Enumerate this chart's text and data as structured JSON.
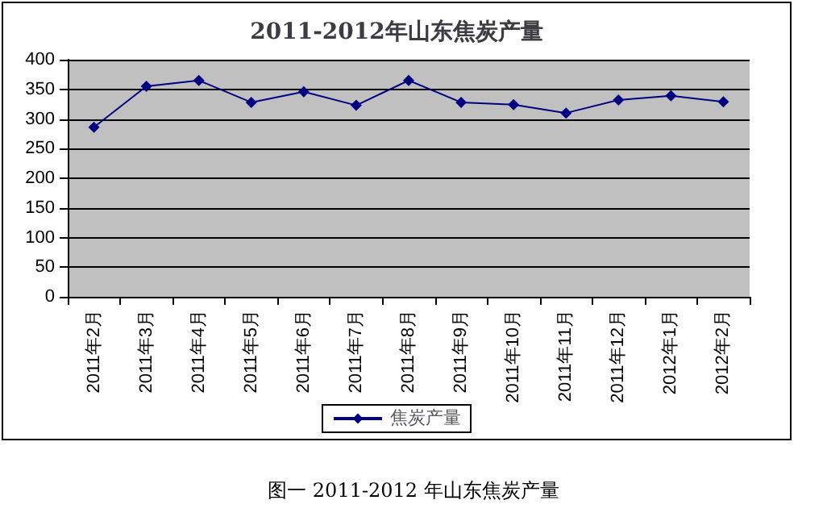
{
  "chart_data": {
    "type": "line",
    "title": "2011-2012年山东焦炭产量",
    "categories": [
      "2011年2月",
      "2011年3月",
      "2011年4月",
      "2011年5月",
      "2011年6月",
      "2011年7月",
      "2011年8月",
      "2011年9月",
      "2011年10月",
      "2011年11月",
      "2011年12月",
      "2012年1月",
      "2012年2月"
    ],
    "series": [
      {
        "name": "焦炭产量",
        "color": "#000080",
        "values": [
          286,
          355,
          365,
          328,
          346,
          323,
          365,
          328,
          324,
          310,
          332,
          339,
          329
        ]
      }
    ],
    "ylim": [
      0,
      400
    ],
    "yticks": [
      0,
      50,
      100,
      150,
      200,
      250,
      300,
      350,
      400
    ],
    "grid": "y",
    "legend": "bottom",
    "marker": "diamond",
    "line_style": "solid",
    "annotations": [
      "图一  2011-2012 年山东焦炭产量"
    ]
  }
}
